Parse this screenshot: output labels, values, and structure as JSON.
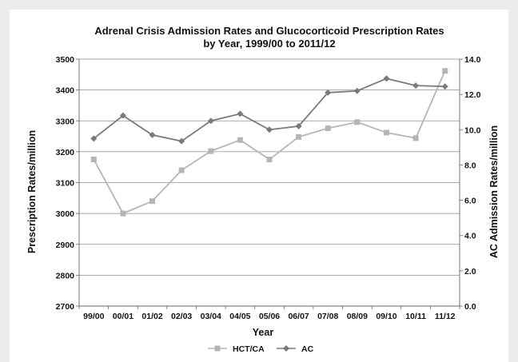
{
  "chart_data": {
    "type": "line",
    "title_line1": "Adrenal Crisis Admission Rates and Glucocorticoid Prescription Rates",
    "title_line2": "by Year, 1999/00 to 2011/12",
    "xlabel": "Year",
    "ylabel_left": "Prescription Rates/million",
    "ylabel_right": "AC Admission Rates/million",
    "categories": [
      "99/00",
      "00/01",
      "01/02",
      "02/03",
      "03/04",
      "04/05",
      "05/06",
      "06/07",
      "07/08",
      "08/09",
      "09/10",
      "10/11",
      "11/12"
    ],
    "y_left": {
      "min": 2700,
      "max": 3500,
      "ticks": [
        "2700",
        "2800",
        "2900",
        "3000",
        "3100",
        "3200",
        "3300",
        "3400",
        "3500"
      ]
    },
    "y_right": {
      "min": 0,
      "max": 14,
      "ticks": [
        "0.0",
        "2.0",
        "4.0",
        "6.0",
        "8.0",
        "10.0",
        "12.0",
        "14.0"
      ]
    },
    "grid": true,
    "legend_position": "bottom",
    "series": [
      {
        "name": "HCT/CA",
        "axis": "left",
        "color": "#b5b5b5",
        "marker": "square",
        "values": [
          3175,
          3000,
          3040,
          3140,
          3202,
          3238,
          3175,
          3248,
          3276,
          3296,
          3262,
          3244,
          3462
        ]
      },
      {
        "name": "AC",
        "axis": "right",
        "color": "#7a7a7a",
        "marker": "diamond",
        "values": [
          9.5,
          10.8,
          9.7,
          9.35,
          10.5,
          10.9,
          10.0,
          10.2,
          12.1,
          12.2,
          12.9,
          12.5,
          12.45
        ]
      }
    ]
  }
}
